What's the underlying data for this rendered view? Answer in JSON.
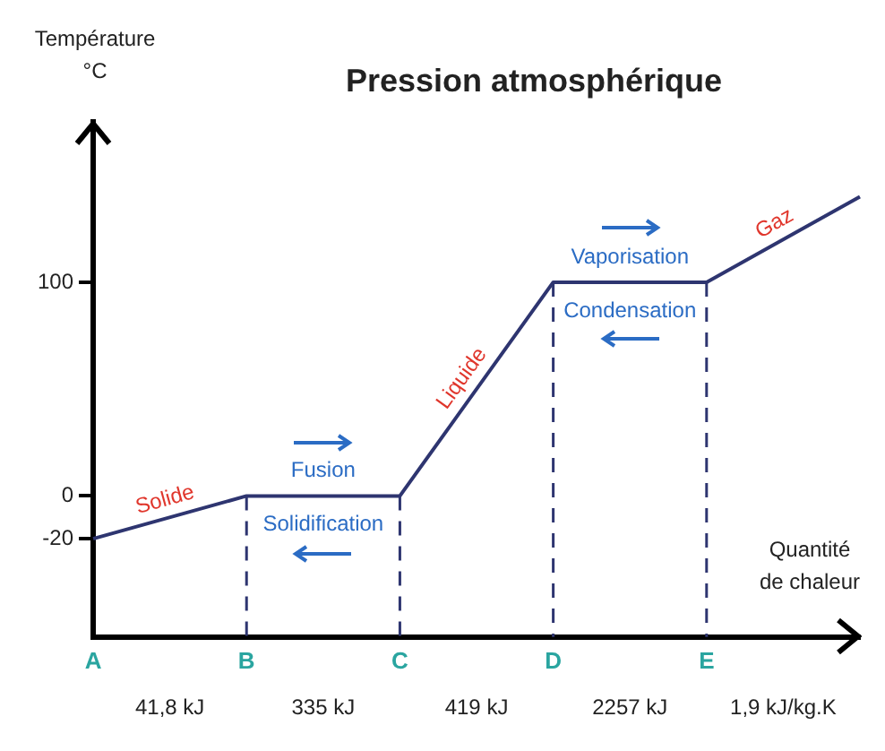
{
  "chart_data": {
    "type": "line",
    "title": "Pression atmosphérique",
    "ylabel": "Température\n°C",
    "xlabel": "Quantité\nde chaleur",
    "categories": [
      "A",
      "B",
      "C",
      "D",
      "E",
      null
    ],
    "series": [
      {
        "color": "#2e3570",
        "values": [
          -20,
          0,
          0,
          100,
          100,
          140
        ]
      }
    ],
    "ylim": [
      -66,
      175
    ],
    "yticks": [
      100,
      0,
      -20
    ],
    "grid": false,
    "legend": false,
    "ref_lines": [
      {
        "axis": "x",
        "value": "B",
        "line_style": "dashed",
        "color": "#2e3570"
      },
      {
        "axis": "x",
        "value": "C",
        "line_style": "dashed",
        "color": "#2e3570"
      },
      {
        "axis": "x",
        "value": "D",
        "line_style": "dashed",
        "color": "#2e3570"
      },
      {
        "axis": "x",
        "value": "E",
        "line_style": "dashed",
        "color": "#2e3570"
      }
    ],
    "annotations": [
      "Solide",
      "Fusion",
      "Solidification",
      "Liquide",
      "Vaporisation",
      "Condensation",
      "Gaz",
      "41,8 kJ",
      "335 kJ",
      "419 kJ",
      "2257 kJ",
      "1,9 kJ/kg.K"
    ]
  }
}
